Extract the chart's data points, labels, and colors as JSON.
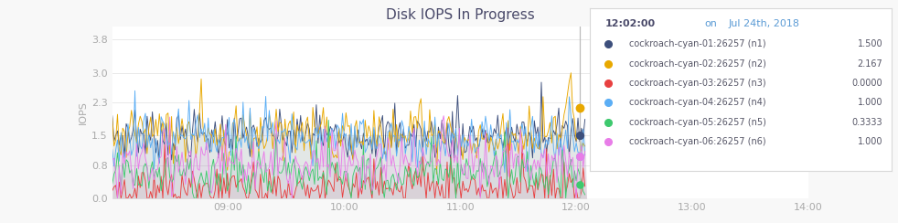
{
  "title": "Disk IOPS In Progress",
  "ylabel": "IOPS",
  "background_color": "#f8f8f8",
  "plot_bg_color": "#ffffff",
  "title_color": "#4a4a6a",
  "title_fontsize": 11,
  "yticks": [
    0.0,
    0.8,
    1.5,
    2.3,
    3.0,
    3.8
  ],
  "ylim": [
    0,
    4.1
  ],
  "xlim": [
    0,
    360
  ],
  "xtick_positions": [
    60,
    120,
    180,
    240,
    300,
    360
  ],
  "xticks_labels": [
    "09:00",
    "10:00",
    "11:00",
    "12:00",
    "13:00",
    "14:00"
  ],
  "series": [
    {
      "label": "cockroach-cyan-01:26257 (n1)",
      "color": "#3d4f7c",
      "alpha": 1.0,
      "base": 1.5,
      "noise": 0.28,
      "fill_alpha": 0.08
    },
    {
      "label": "cockroach-cyan-02:26257 (n2)",
      "color": "#e8a800",
      "alpha": 1.0,
      "base": 1.5,
      "noise": 0.32,
      "fill_alpha": 0.06
    },
    {
      "label": "cockroach-cyan-03:26257 (n3)",
      "color": "#e84040",
      "alpha": 1.0,
      "base": 0.25,
      "noise": 0.25,
      "fill_alpha": 0.05
    },
    {
      "label": "cockroach-cyan-04:26257 (n4)",
      "color": "#5baef5",
      "alpha": 1.0,
      "base": 1.4,
      "noise": 0.3,
      "fill_alpha": 0.08
    },
    {
      "label": "cockroach-cyan-05:26257 (n5)",
      "color": "#3ec96e",
      "alpha": 1.0,
      "base": 0.55,
      "noise": 0.28,
      "fill_alpha": 0.05
    },
    {
      "label": "cockroach-cyan-06:26257 (n6)",
      "color": "#e87de8",
      "alpha": 1.0,
      "base": 0.85,
      "noise": 0.35,
      "fill_alpha": 0.1
    }
  ],
  "tooltip_time": "12:02:00",
  "tooltip_date": "Jul 24th, 2018",
  "tooltip_values": [
    "1.500",
    "2.167",
    "0.0000",
    "1.000",
    "0.3333",
    "1.000"
  ],
  "tooltip_time_color": "#4a4a6a",
  "tooltip_on_color": "#5b9bd5",
  "vline_x": 242,
  "n_points": 400,
  "seed": 7
}
